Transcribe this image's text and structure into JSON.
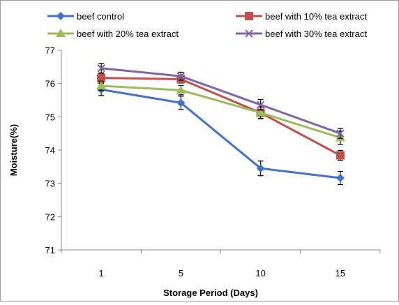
{
  "chart_data": {
    "type": "line",
    "title": "",
    "xlabel": "Storage Period (Days)",
    "ylabel": "Moisture(%)",
    "categories": [
      "1",
      "5",
      "10",
      "15"
    ],
    "ylim": [
      71,
      77
    ],
    "yticks": [
      71,
      72,
      73,
      74,
      75,
      76,
      77
    ],
    "grid": false,
    "legend_position": "top",
    "series": [
      {
        "name": "beef control",
        "values": [
          75.82,
          75.42,
          73.45,
          73.16
        ],
        "errors": [
          0.18,
          0.2,
          0.22,
          0.2
        ],
        "color": "#4472c4",
        "marker": "diamond"
      },
      {
        "name": "beef with 10% tea extract",
        "values": [
          76.17,
          76.13,
          75.12,
          73.84
        ],
        "errors": [
          0.15,
          0.12,
          0.18,
          0.15
        ],
        "color": "#c0504d",
        "marker": "square"
      },
      {
        "name": "beef with 20% tea extract",
        "values": [
          75.93,
          75.8,
          75.12,
          74.37
        ],
        "errors": [
          0.14,
          0.14,
          0.17,
          0.2
        ],
        "color": "#9bbb59",
        "marker": "triangle"
      },
      {
        "name": "beef with 30% tea extract",
        "values": [
          76.46,
          76.22,
          75.36,
          74.5
        ],
        "errors": [
          0.15,
          0.12,
          0.16,
          0.15
        ],
        "color": "#8064a2",
        "marker": "x"
      }
    ]
  }
}
